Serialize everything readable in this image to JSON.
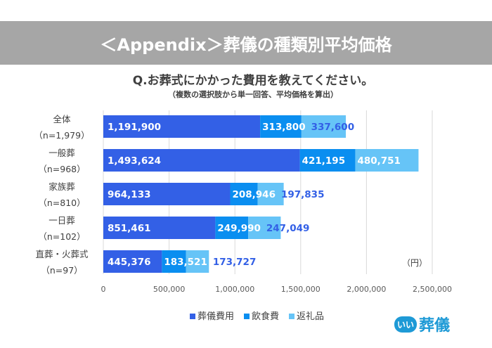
{
  "header": {
    "title": "＜Appendix＞葬儀の種類別平均価格"
  },
  "question": {
    "main": "Q.お葬式にかかった費用を教えてください。",
    "note": "（複数の選択肢から単一回答、平均価格を算出）"
  },
  "chart_data": {
    "type": "bar",
    "orientation": "horizontal",
    "stacked": true,
    "categories": [
      [
        "全体",
        "（n=1,979）"
      ],
      [
        "一般葬",
        "（n=968）"
      ],
      [
        "家族葬",
        "（n=810）"
      ],
      [
        "一日葬",
        "（n=102）"
      ],
      [
        "直葬・火葬式",
        "（n=97）"
      ]
    ],
    "series": [
      {
        "name": "葬儀費用",
        "color": "#3360e6",
        "values": [
          1191900,
          1493624,
          964133,
          851461,
          445376
        ],
        "labels": [
          "1,191,900",
          "1,493,624",
          "964,133",
          "851,461",
          "445,376"
        ]
      },
      {
        "name": "飲食費",
        "color": "#0a8ef0",
        "values": [
          313800,
          421195,
          208946,
          249990,
          183521
        ],
        "labels": [
          "313,800",
          "421,195",
          "208,946",
          "249,990",
          "183,521"
        ]
      },
      {
        "name": "返礼品",
        "color": "#66c4f7",
        "values": [
          337600,
          480751,
          197835,
          247049,
          173727
        ],
        "labels": [
          "337,600",
          "480,751",
          "197,835",
          "247,049",
          "173,727"
        ]
      }
    ],
    "xlim": [
      0,
      2500000
    ],
    "xticks": [
      "0",
      "500,000",
      "1,000,000",
      "1,500,000",
      "2,000,000",
      "2,500,000"
    ],
    "unit": "（円）",
    "grid": true,
    "legend": "bottom"
  },
  "logo": {
    "mark": "いい",
    "text": "葬儀"
  }
}
